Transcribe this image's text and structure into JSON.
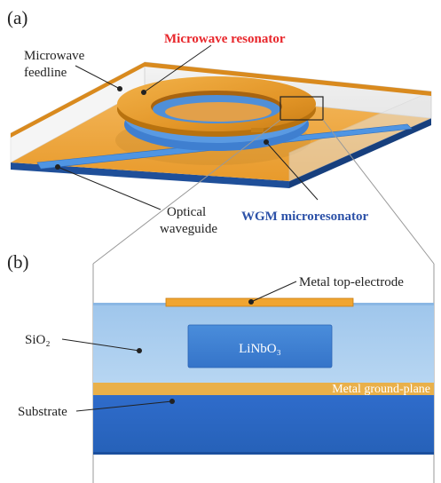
{
  "panel_a": {
    "panel_label": "(a)",
    "microwave_feedline_label_line1": "Microwave",
    "microwave_feedline_label_line2": "feedline",
    "microwave_resonator_label": "Microwave resonator",
    "optical_waveguide_label_line1": "Optical",
    "optical_waveguide_label_line2": "waveguide",
    "wgm_microresonator_label": "WGM microresonator"
  },
  "panel_b": {
    "panel_label": "(b)",
    "metal_top_electrode_label": "Metal top-electrode",
    "sio2_label": "SiO₂",
    "linbo3_label": "LiNbO₃",
    "metal_ground_plane_label": "Metal ground-plane",
    "substrate_label": "Substrate"
  },
  "colors": {
    "metal": "#f0a531",
    "metal_dark": "#c97e12",
    "sio2": "#a9cdef",
    "linbo3": "#3b7fd1",
    "substrate": "#2f6fc7",
    "substrate_dark": "#1b4f9e",
    "waveguide": "#4f95e3",
    "red_label": "#e8262b",
    "blue_label": "#2d52a8"
  }
}
